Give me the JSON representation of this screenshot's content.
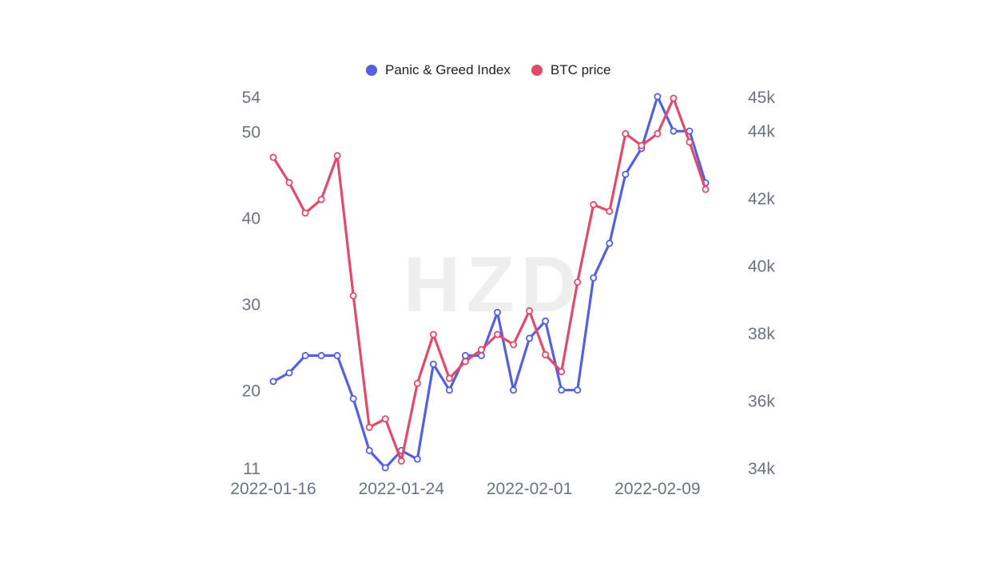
{
  "watermark": "HZD",
  "colors": {
    "fgi": "#5560e0",
    "btc": "#e24a6a",
    "axis_text": "#6b7280"
  },
  "legend": [
    {
      "label": "Panic & Greed Index",
      "color": "#5560e0"
    },
    {
      "label": "BTC price",
      "color": "#e24a6a"
    }
  ],
  "chart_data": {
    "type": "line",
    "x_tick_labels": [
      "2022-01-16",
      "2022-01-24",
      "2022-02-01",
      "2022-02-09"
    ],
    "x_tick_index": [
      0,
      8,
      16,
      24
    ],
    "left_axis": {
      "ticks": [
        11,
        20,
        30,
        40,
        50,
        54
      ],
      "labels": [
        "11",
        "20",
        "30",
        "40",
        "50",
        "54"
      ],
      "range": [
        11,
        54
      ]
    },
    "right_axis": {
      "ticks": [
        34,
        36,
        38,
        40,
        42,
        44,
        45
      ],
      "labels": [
        "34k",
        "36k",
        "38k",
        "40k",
        "42k",
        "44k",
        "45k"
      ],
      "range": [
        34,
        45
      ],
      "unit": "k"
    },
    "series": [
      {
        "name": "Panic & Greed Index",
        "axis": "left",
        "values": [
          21,
          22,
          24,
          24,
          24,
          19,
          13,
          11,
          13,
          12,
          23,
          20,
          24,
          24,
          29,
          20,
          26,
          28,
          20,
          20,
          33,
          37,
          45,
          48,
          54,
          50,
          50,
          44
        ]
      },
      {
        "name": "BTC price",
        "axis": "right",
        "values": [
          43.2,
          42.45,
          41.55,
          41.95,
          43.25,
          39.1,
          35.2,
          35.45,
          34.2,
          36.5,
          37.95,
          36.65,
          37.15,
          37.5,
          37.95,
          37.65,
          38.65,
          37.35,
          36.85,
          39.5,
          41.8,
          41.6,
          43.9,
          43.55,
          43.9,
          44.95,
          43.65,
          42.25
        ]
      }
    ]
  }
}
